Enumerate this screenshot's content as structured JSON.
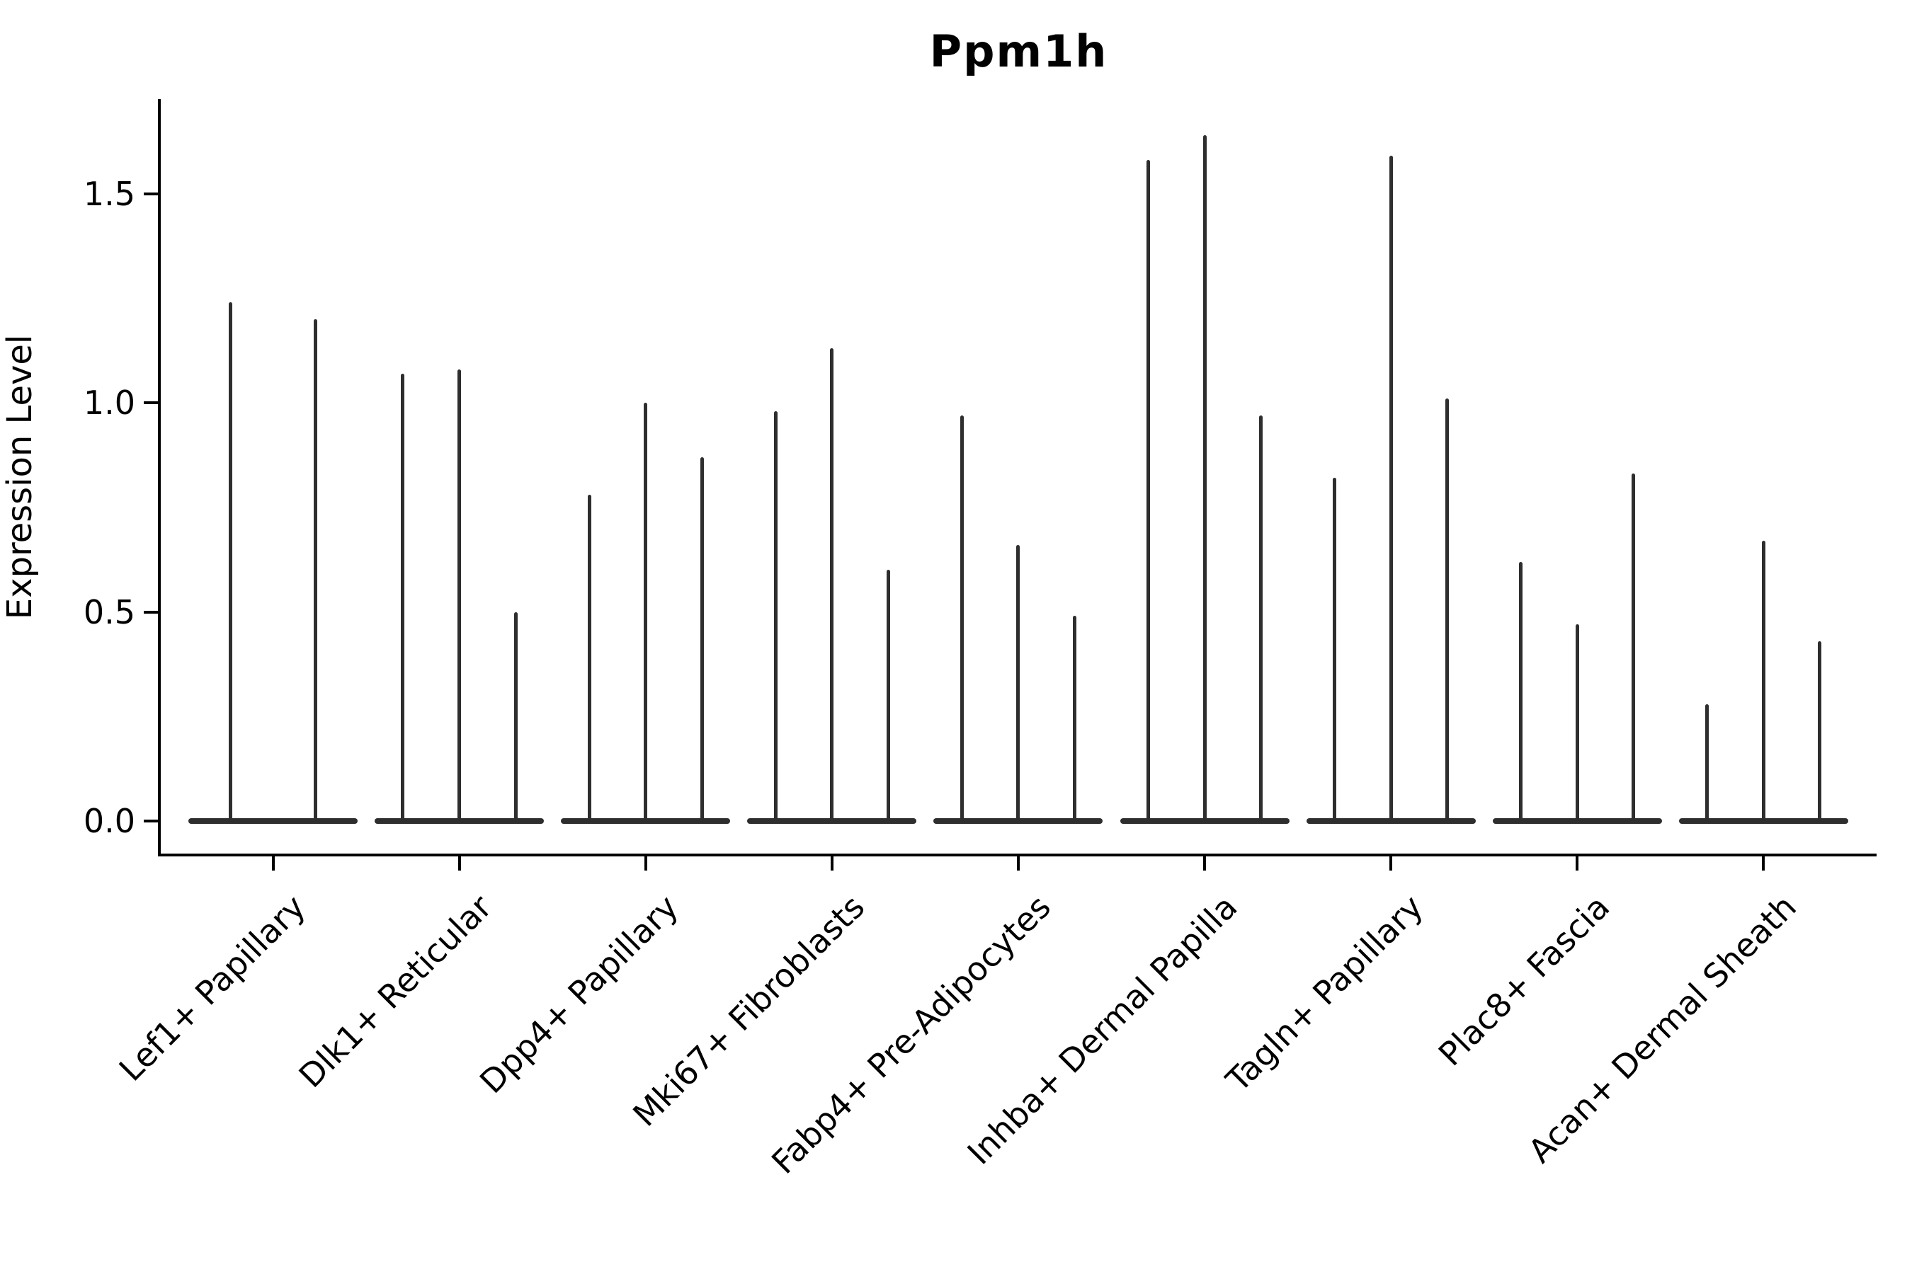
{
  "title": "Ppm1h",
  "y_axis": {
    "label": "Expression Level",
    "tick_labels": [
      "0.0",
      "0.5",
      "1.0",
      "1.5"
    ]
  },
  "x_axis": {
    "tick_label_rotation_deg": 45
  },
  "colors": {
    "violin": "#2e2e2e",
    "axis": "#000000",
    "background": "#ffffff"
  },
  "chart_data": {
    "type": "violin",
    "title": "Ppm1h",
    "xlabel": "",
    "ylabel": "Expression Level",
    "ylim": [
      0,
      1.73
    ],
    "yticks": [
      0.0,
      0.5,
      1.0,
      1.5
    ],
    "grid": false,
    "legend": "none",
    "description": "Very thin (spike-like) violin plots of gene expression per fibroblast cluster; most mass at 0 with a narrow tail reaching the listed maximum expression value. First category has 2 violins, all others have 3.",
    "categories": [
      "Lef1+ Papillary",
      "Dlk1+ Reticular",
      "Dpp4+ Papillary",
      "Mki67+ Fibroblasts",
      "Fabp4+ Pre-Adipocytes",
      "Inhba+ Dermal Papilla",
      "Tagln+ Papillary",
      "Plac8+ Fascia",
      "Acan+ Dermal Sheath"
    ],
    "violin_max_values": [
      [
        1.24,
        1.2
      ],
      [
        1.07,
        1.08,
        0.5
      ],
      [
        0.78,
        1.0,
        0.87
      ],
      [
        0.98,
        1.13,
        0.6
      ],
      [
        0.97,
        0.66,
        0.49
      ],
      [
        1.58,
        1.64,
        0.97
      ],
      [
        0.82,
        1.59,
        1.01
      ],
      [
        0.62,
        0.47,
        0.83
      ],
      [
        0.28,
        0.67,
        0.43
      ]
    ]
  }
}
